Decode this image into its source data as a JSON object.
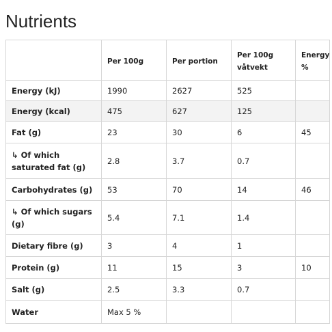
{
  "title": "Nutrients",
  "table": {
    "header": [
      null,
      "Per 100g",
      "Per portion",
      "Per 100g\nvåtvekt",
      "Energy\n%"
    ],
    "rows": [
      [
        "Energy (kJ)",
        "1990",
        "2627",
        "525",
        null
      ],
      [
        "Energy (kcal)",
        "475",
        "627",
        "125",
        null
      ],
      [
        "Fat (g)",
        "23",
        "30",
        "6",
        "45"
      ],
      [
        "↳ Of which saturated fat (g)",
        "2.8",
        "3.7",
        "0.7",
        null
      ],
      [
        "Carbohydrates (g)",
        "53",
        "70",
        "14",
        "46"
      ],
      [
        "↳ Of which sugars (g)",
        "5.4",
        "7.1",
        "1.4",
        null
      ],
      [
        "Dietary fibre (g)",
        "3",
        "4",
        "1",
        null
      ],
      [
        "Protein (g)",
        "11",
        "15",
        "3",
        "10"
      ],
      [
        "Salt (g)",
        "2.5",
        "3.3",
        "0.7",
        null
      ],
      [
        "Water",
        "Max 5 %",
        null,
        null,
        null
      ]
    ]
  }
}
